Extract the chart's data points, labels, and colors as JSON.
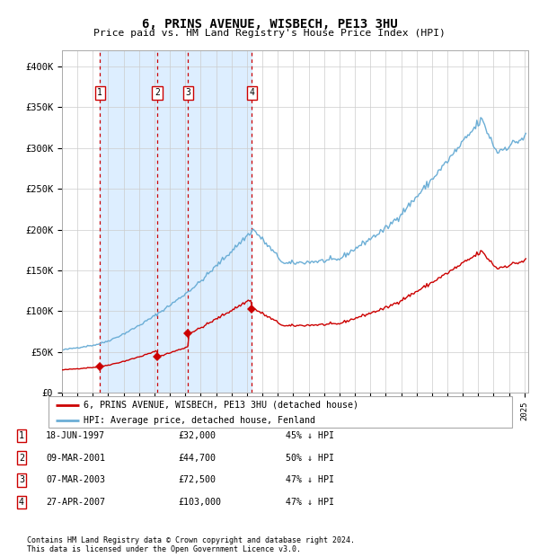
{
  "title": "6, PRINS AVENUE, WISBECH, PE13 3HU",
  "subtitle": "Price paid vs. HM Land Registry's House Price Index (HPI)",
  "transactions": [
    {
      "label": "1",
      "date": "1997-06-18",
      "price": 32000,
      "text": "18-JUN-1997",
      "pct": "45% ↓ HPI"
    },
    {
      "label": "2",
      "date": "2001-03-09",
      "price": 44700,
      "text": "09-MAR-2001",
      "pct": "50% ↓ HPI"
    },
    {
      "label": "3",
      "date": "2003-03-07",
      "price": 72500,
      "text": "07-MAR-2003",
      "pct": "47% ↓ HPI"
    },
    {
      "label": "4",
      "date": "2007-04-27",
      "price": 103000,
      "text": "27-APR-2007",
      "pct": "47% ↓ HPI"
    }
  ],
  "legend_line1": "6, PRINS AVENUE, WISBECH, PE13 3HU (detached house)",
  "legend_line2": "HPI: Average price, detached house, Fenland",
  "footer1": "Contains HM Land Registry data © Crown copyright and database right 2024.",
  "footer2": "This data is licensed under the Open Government Licence v3.0.",
  "hpi_color": "#6baed6",
  "price_color": "#cc0000",
  "vline_color": "#cc0000",
  "shade_color": "#ddeeff",
  "background_color": "#ffffff",
  "grid_color": "#cccccc",
  "ylim": [
    0,
    420000
  ],
  "yticks": [
    0,
    50000,
    100000,
    150000,
    200000,
    250000,
    300000,
    350000,
    400000
  ],
  "ylabel_fmt": [
    "£0",
    "£50K",
    "£100K",
    "£150K",
    "£200K",
    "£250K",
    "£300K",
    "£350K",
    "£400K"
  ],
  "xstart_year": 1995,
  "xend_year": 2025
}
